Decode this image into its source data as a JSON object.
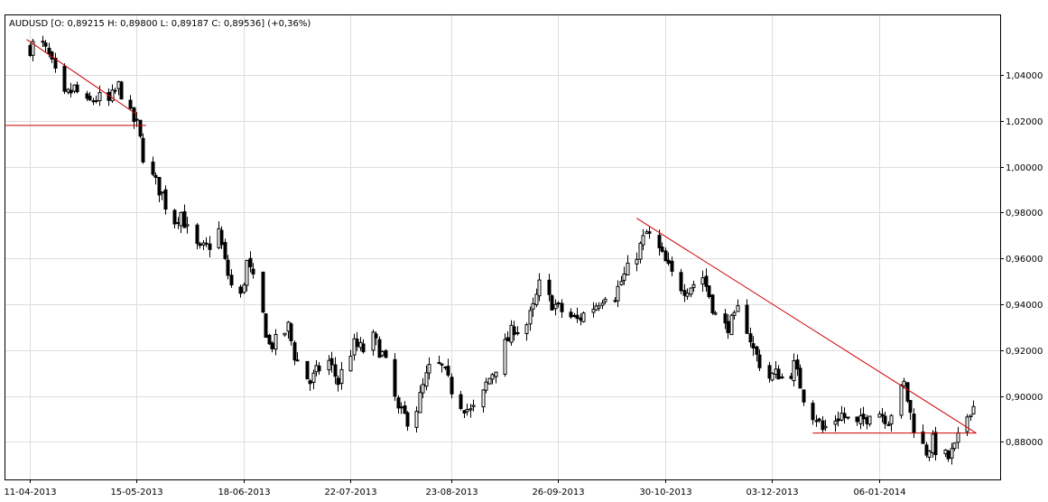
{
  "header": {
    "text": "AUDUSD [O: 0,89215  H: 0,89800  L: 0,89187  C: 0,89536] (+0,36%)"
  },
  "chart_data": {
    "type": "candlestick",
    "symbol": "AUDUSD",
    "ohlc_last": {
      "open": 0.89215,
      "high": 0.898,
      "low": 0.89187,
      "close": 0.89536,
      "change": "+0,36%"
    },
    "grid": true,
    "x_start": "2013-04-11",
    "x_end": "2014-02-05",
    "x_ticks": [
      {
        "date": "2013-04-11",
        "label": "11-04-2013"
      },
      {
        "date": "2013-05-15",
        "label": "15-05-2013"
      },
      {
        "date": "2013-06-18",
        "label": "18-06-2013"
      },
      {
        "date": "2013-07-22",
        "label": "22-07-2013"
      },
      {
        "date": "2013-08-23",
        "label": "23-08-2013"
      },
      {
        "date": "2013-09-26",
        "label": "26-09-2013"
      },
      {
        "date": "2013-10-30",
        "label": "30-10-2013"
      },
      {
        "date": "2013-12-03",
        "label": "03-12-2013"
      },
      {
        "date": "2014-01-06",
        "label": "06-01-2014"
      }
    ],
    "y_range": [
      0.862,
      1.066
    ],
    "y_ticks": [
      {
        "value": 0.88,
        "label": "0,88000"
      },
      {
        "value": 0.9,
        "label": "0,90000"
      },
      {
        "value": 0.92,
        "label": "0,92000"
      },
      {
        "value": 0.94,
        "label": "0,94000"
      },
      {
        "value": 0.96,
        "label": "0,96000"
      },
      {
        "value": 0.98,
        "label": "0,98000"
      },
      {
        "value": 1.0,
        "label": "1,00000"
      },
      {
        "value": 1.02,
        "label": "1,02000"
      },
      {
        "value": 1.04,
        "label": "1,04000"
      }
    ],
    "close_path": [
      [
        "2013-04-11",
        1.052
      ],
      [
        "2013-04-14",
        1.055
      ],
      [
        "2013-04-17",
        1.048
      ],
      [
        "2013-04-19",
        1.04
      ],
      [
        "2013-04-22",
        1.03
      ],
      [
        "2013-04-25",
        1.034
      ],
      [
        "2013-04-29",
        1.027
      ],
      [
        "2013-05-02",
        1.03
      ],
      [
        "2013-05-06",
        1.028
      ],
      [
        "2013-05-09",
        1.035
      ],
      [
        "2013-05-11",
        1.03
      ],
      [
        "2013-05-13",
        1.022
      ],
      [
        "2013-05-15",
        1.018
      ],
      [
        "2013-05-17",
        1.005
      ],
      [
        "2013-05-20",
        0.995
      ],
      [
        "2013-05-23",
        0.988
      ],
      [
        "2013-05-26",
        0.975
      ],
      [
        "2013-05-29",
        0.98
      ],
      [
        "2013-06-01",
        0.968
      ],
      [
        "2013-06-04",
        0.963
      ],
      [
        "2013-06-07",
        0.966
      ],
      [
        "2013-06-10",
        0.972
      ],
      [
        "2013-06-12",
        0.958
      ],
      [
        "2013-06-14",
        0.948
      ],
      [
        "2013-06-17",
        0.943
      ],
      [
        "2013-06-19",
        0.958
      ],
      [
        "2013-06-21",
        0.95
      ],
      [
        "2013-06-24",
        0.935
      ],
      [
        "2013-06-26",
        0.922
      ],
      [
        "2013-06-29",
        0.924
      ],
      [
        "2013-07-02",
        0.93
      ],
      [
        "2013-07-04",
        0.918
      ],
      [
        "2013-07-06",
        0.912
      ],
      [
        "2013-07-09",
        0.906
      ],
      [
        "2013-07-12",
        0.912
      ],
      [
        "2013-07-15",
        0.915
      ],
      [
        "2013-07-18",
        0.906
      ],
      [
        "2013-07-20",
        0.914
      ],
      [
        "2013-07-23",
        0.922
      ],
      [
        "2013-07-26",
        0.92
      ],
      [
        "2013-07-29",
        0.925
      ],
      [
        "2013-08-01",
        0.918
      ],
      [
        "2013-08-04",
        0.905
      ],
      [
        "2013-08-06",
        0.893
      ],
      [
        "2013-08-09",
        0.89
      ],
      [
        "2013-08-12",
        0.895
      ],
      [
        "2013-08-15",
        0.908
      ],
      [
        "2013-08-17",
        0.915
      ],
      [
        "2013-08-20",
        0.912
      ],
      [
        "2013-08-23",
        0.903
      ],
      [
        "2013-08-26",
        0.897
      ],
      [
        "2013-08-29",
        0.893
      ],
      [
        "2013-09-01",
        0.896
      ],
      [
        "2013-09-03",
        0.905
      ],
      [
        "2013-09-06",
        0.913
      ],
      [
        "2013-09-09",
        0.922
      ],
      [
        "2013-09-12",
        0.93
      ],
      [
        "2013-09-15",
        0.928
      ],
      [
        "2013-09-18",
        0.938
      ],
      [
        "2013-09-20",
        0.948
      ],
      [
        "2013-09-23",
        0.942
      ],
      [
        "2013-09-26",
        0.938
      ],
      [
        "2013-09-29",
        0.935
      ],
      [
        "2013-10-02",
        0.933
      ],
      [
        "2013-10-05",
        0.937
      ],
      [
        "2013-10-08",
        0.94
      ],
      [
        "2013-10-11",
        0.945
      ],
      [
        "2013-10-14",
        0.944
      ],
      [
        "2013-10-16",
        0.95
      ],
      [
        "2013-10-19",
        0.957
      ],
      [
        "2013-10-22",
        0.965
      ],
      [
        "2013-10-24",
        0.971
      ],
      [
        "2013-10-27",
        0.966
      ],
      [
        "2013-10-30",
        0.958
      ],
      [
        "2013-11-02",
        0.95
      ],
      [
        "2013-11-05",
        0.947
      ],
      [
        "2013-11-08",
        0.949
      ],
      [
        "2013-11-11",
        0.952
      ],
      [
        "2013-11-13",
        0.944
      ],
      [
        "2013-11-15",
        0.935
      ],
      [
        "2013-11-18",
        0.93
      ],
      [
        "2013-11-21",
        0.933
      ],
      [
        "2013-11-23",
        0.941
      ],
      [
        "2013-11-25",
        0.93
      ],
      [
        "2013-11-27",
        0.92
      ],
      [
        "2013-11-30",
        0.912
      ],
      [
        "2013-12-02",
        0.908
      ],
      [
        "2013-12-05",
        0.91
      ],
      [
        "2013-12-07",
        0.906
      ],
      [
        "2013-12-10",
        0.913
      ],
      [
        "2013-12-12",
        0.905
      ],
      [
        "2013-12-14",
        0.895
      ],
      [
        "2013-12-17",
        0.891
      ],
      [
        "2013-12-19",
        0.885
      ],
      [
        "2013-12-22",
        0.889
      ],
      [
        "2013-12-25",
        0.892
      ],
      [
        "2013-12-28",
        0.888
      ],
      [
        "2013-12-30",
        0.887
      ],
      [
        "2014-01-02",
        0.891
      ],
      [
        "2014-01-04",
        0.897
      ],
      [
        "2014-01-06",
        0.893
      ],
      [
        "2014-01-09",
        0.89
      ],
      [
        "2014-01-12",
        0.899
      ],
      [
        "2014-01-14",
        0.905
      ],
      [
        "2014-01-16",
        0.892
      ],
      [
        "2014-01-18",
        0.882
      ],
      [
        "2014-01-21",
        0.876
      ],
      [
        "2014-01-23",
        0.88
      ],
      [
        "2014-01-25",
        0.874
      ],
      [
        "2014-01-28",
        0.873
      ],
      [
        "2014-01-30",
        0.877
      ],
      [
        "2014-02-02",
        0.888
      ],
      [
        "2014-02-04",
        0.895
      ]
    ],
    "trendlines": [
      {
        "x1": "2013-04-10",
        "y1": 1.0555,
        "x2": "2013-05-15",
        "y2": 1.0228,
        "color": "#cc0000"
      },
      {
        "x1": "2013-04-03",
        "y1": 1.018,
        "x2": "2013-05-18",
        "y2": 1.018,
        "color": "#cc0000"
      },
      {
        "x1": "2013-10-21",
        "y1": 0.9775,
        "x2": "2014-02-06",
        "y2": 0.8838,
        "color": "#cc0000"
      },
      {
        "x1": "2013-12-16",
        "y1": 0.8838,
        "x2": "2014-02-06",
        "y2": 0.8838,
        "color": "#cc0000"
      }
    ],
    "colors": {
      "bull": "#ffffff",
      "bear": "#000000",
      "wick": "#000000",
      "trend": "#cc0000",
      "grid": "#dddddd"
    }
  }
}
